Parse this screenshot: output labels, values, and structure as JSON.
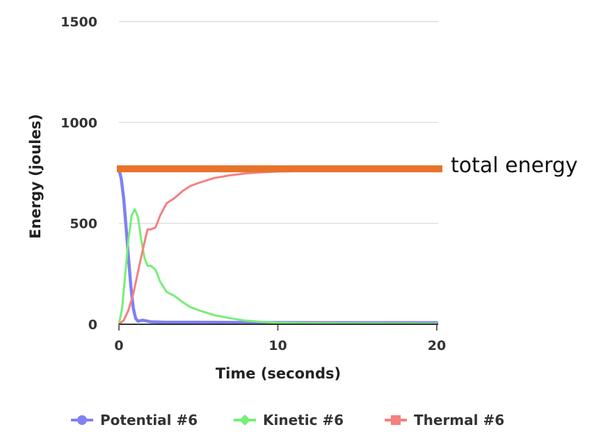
{
  "chart_data": {
    "type": "line",
    "xlabel": "Time (seconds)",
    "ylabel": "Energy (joules)",
    "xlim": [
      0,
      20.5
    ],
    "ylim": [
      0,
      1500
    ],
    "xticks": [
      "0",
      "10",
      "20"
    ],
    "yticks": [
      "0",
      "500",
      "1000",
      "1500"
    ],
    "grid": true,
    "legend_position": "bottom",
    "annotation": {
      "text": "total energy",
      "value": 770,
      "color": "#e8732a"
    },
    "series": [
      {
        "name": "Potential #6",
        "color": "#8080f5",
        "x": [
          0,
          0.15,
          0.3,
          0.45,
          0.6,
          0.75,
          0.9,
          1.05,
          1.2,
          1.5,
          2,
          3,
          5,
          8,
          12,
          16,
          20
        ],
        "y": [
          770,
          720,
          620,
          480,
          330,
          190,
          80,
          30,
          15,
          20,
          12,
          10,
          10,
          9,
          8,
          8,
          8
        ]
      },
      {
        "name": "Kinetic #6",
        "color": "#77ee77",
        "x": [
          0,
          0.2,
          0.4,
          0.6,
          0.8,
          1.0,
          1.2,
          1.4,
          1.6,
          1.8,
          2.0,
          2.3,
          2.6,
          3.0,
          3.5,
          4.0,
          4.5,
          5.0,
          6.0,
          7.0,
          8.0,
          9.0,
          10,
          12,
          15,
          20
        ],
        "y": [
          0,
          80,
          250,
          420,
          540,
          570,
          530,
          420,
          330,
          290,
          290,
          270,
          210,
          160,
          140,
          110,
          85,
          70,
          45,
          30,
          18,
          12,
          8,
          5,
          4,
          3
        ]
      },
      {
        "name": "Thermal #6",
        "color": "#f58080",
        "x": [
          0,
          0.3,
          0.6,
          0.9,
          1.2,
          1.5,
          1.8,
          2.0,
          2.3,
          2.6,
          3.0,
          3.5,
          4.0,
          4.5,
          5.0,
          6.0,
          7.0,
          8.0,
          9.0,
          10,
          12,
          14,
          17,
          20
        ],
        "y": [
          0,
          20,
          70,
          150,
          260,
          370,
          470,
          470,
          480,
          540,
          600,
          625,
          660,
          685,
          700,
          725,
          738,
          748,
          753,
          757,
          760,
          762,
          763,
          763
        ]
      }
    ]
  }
}
